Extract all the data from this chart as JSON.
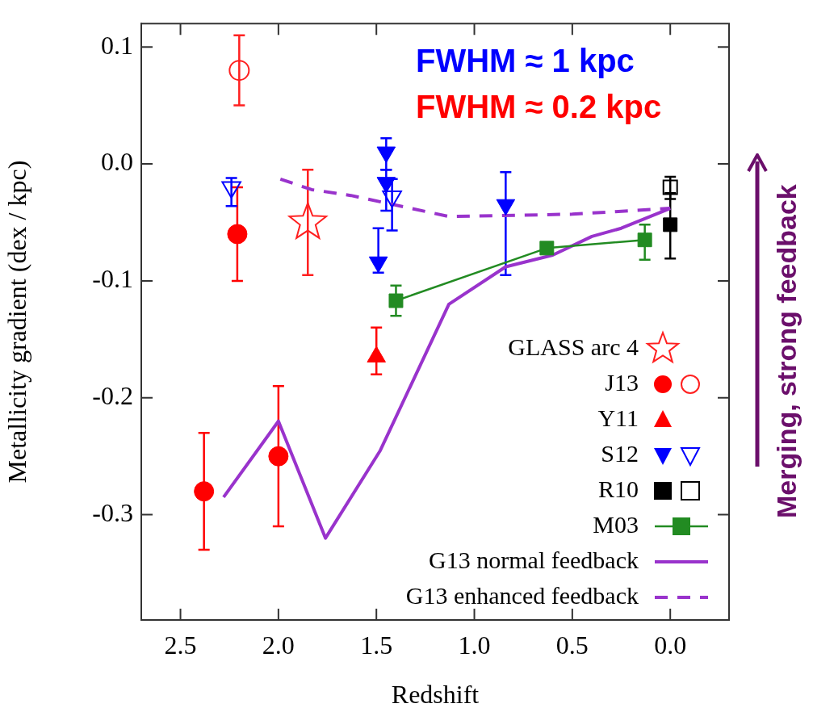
{
  "chart_data": {
    "type": "scatter",
    "xlabel": "Redshift",
    "ylabel": "Metallicity gradient (dex / kpc)",
    "xlim": [
      2.7,
      -0.3
    ],
    "xticks": [
      2.5,
      {
        "value": 2,
        "label": "2.0"
      },
      1.5,
      {
        "value": 1,
        "label": "1.0"
      },
      0.5,
      {
        "value": 0,
        "label": "0.0"
      }
    ],
    "ylim": [
      -0.39,
      0.12
    ],
    "yticks": [
      0.1,
      {
        "value": 0,
        "label": "0.0"
      },
      -0.1,
      -0.2,
      -0.3
    ],
    "grid": false,
    "legend": "bottom right",
    "annotations": [
      "FWHM ≈ 1 kpc",
      "FWHM ≈ 0.2 kpc",
      "Merging, strong feedback"
    ],
    "series": [
      {
        "name": "GLASS arc 4",
        "type": "scatter",
        "marker": "star",
        "color": "#ff2020",
        "x": [
          1.85
        ],
        "values": [
          -0.05
        ],
        "errors": [
          [
            -0.095,
            -0.005
          ]
        ]
      },
      {
        "name": "J13",
        "type": "scatter",
        "marker": "circle",
        "color": "#ff0000",
        "x": [
          2.21,
          2.38,
          2.0
        ],
        "values": [
          -0.06,
          -0.28,
          -0.25
        ],
        "errors": [
          [
            -0.1,
            -0.02
          ],
          [
            -0.33,
            -0.23
          ],
          [
            -0.31,
            -0.19
          ]
        ]
      },
      {
        "type": "scatter",
        "marker": "circle-open",
        "color": "#ff2020",
        "x": [
          2.2
        ],
        "values": [
          0.08
        ],
        "errors": [
          [
            0.05,
            0.11
          ]
        ]
      },
      {
        "name": "Y11",
        "type": "scatter",
        "marker": "triangle",
        "color": "#ff0000",
        "x": [
          1.5
        ],
        "values": [
          -0.165
        ],
        "errors": [
          [
            -0.18,
            -0.14
          ]
        ]
      },
      {
        "name": "S12",
        "type": "scatter",
        "marker": "triangle-down",
        "color": "#0000ff",
        "x": [
          1.45,
          1.45,
          1.49,
          0.84
        ],
        "values": [
          0.01,
          -0.016,
          -0.084,
          -0.035
        ],
        "errors": [
          [
            -0.005,
            0.022
          ],
          [
            -0.04,
            -0.005
          ],
          [
            -0.093,
            -0.055
          ],
          [
            -0.095,
            -0.007
          ]
        ]
      },
      {
        "type": "scatter",
        "marker": "triangle-down-open",
        "color": "#0000ff",
        "x": [
          2.24,
          1.42
        ],
        "values": [
          -0.02,
          -0.028
        ],
        "errors": [
          [
            -0.036,
            -0.012
          ],
          [
            -0.057,
            -0.013
          ]
        ]
      },
      {
        "name": "R10",
        "type": "scatter",
        "marker": "square",
        "color": "#000000",
        "x": [
          0.0
        ],
        "values": [
          -0.052
        ],
        "errors": [
          [
            -0.081,
            -0.025
          ]
        ]
      },
      {
        "type": "scatter",
        "marker": "square-open",
        "color": "#000000",
        "x": [
          0.0
        ],
        "values": [
          -0.02
        ],
        "errors": [
          [
            -0.03,
            -0.011
          ]
        ]
      },
      {
        "name": "M03",
        "type": "line",
        "marker": "square",
        "line_style": "solid",
        "color": "#228b22",
        "x": [
          1.4,
          0.63,
          0.13
        ],
        "values": [
          -0.117,
          -0.072,
          -0.065
        ],
        "errors": [
          [
            -0.13,
            -0.104
          ],
          null,
          [
            -0.082,
            -0.052
          ]
        ]
      },
      {
        "name": "G13 normal feedback",
        "type": "line",
        "marker": "none",
        "line_style": "solid",
        "color": "#9933cc",
        "x": [
          2.28,
          2.0,
          1.76,
          1.48,
          1.13,
          0.84,
          0.6,
          0.4,
          0.25,
          0.0
        ],
        "values": [
          -0.285,
          -0.22,
          -0.32,
          -0.245,
          -0.12,
          -0.088,
          -0.078,
          -0.062,
          -0.055,
          -0.038
        ]
      },
      {
        "name": "G13 enhanced feedback",
        "type": "line",
        "marker": "none",
        "line_style": "dashed",
        "color": "#9933cc",
        "x": [
          1.99,
          1.83,
          1.63,
          1.13,
          0.5,
          0.0
        ],
        "values": [
          -0.013,
          -0.022,
          -0.027,
          -0.045,
          -0.043,
          -0.038
        ]
      }
    ]
  }
}
